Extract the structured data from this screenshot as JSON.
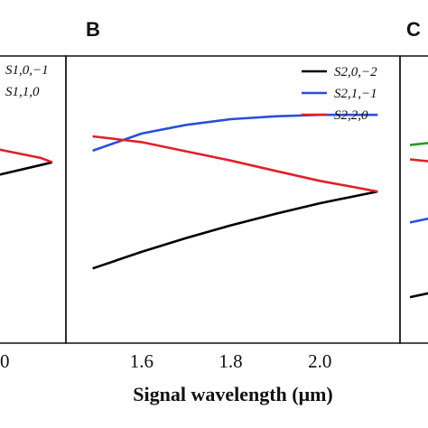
{
  "chart_data": [
    {
      "panel_label": "",
      "type": "line",
      "legend_entries": [
        "S1,0,−1",
        "S1,1,0"
      ],
      "series": [
        {
          "color": "#000000",
          "points": [
            [
              1.45,
              0.58
            ],
            [
              2.0,
              0.62
            ],
            [
              2.13,
              0.63
            ]
          ]
        },
        {
          "color": "#e0202a",
          "points": [
            [
              1.45,
              0.68
            ],
            [
              2.0,
              0.645
            ],
            [
              2.13,
              0.63
            ]
          ]
        }
      ],
      "x_tick_labels": [
        "0"
      ]
    },
    {
      "panel_label": "B",
      "type": "line",
      "xlabel": "Signal wavelength (μm)",
      "xlim": [
        1.43,
        2.18
      ],
      "ylim": [
        0.0,
        1.0
      ],
      "x_ticks": [
        1.6,
        1.8,
        2.0
      ],
      "x_tick_labels": [
        "1.6",
        "1.8",
        "2.0"
      ],
      "grid": false,
      "legend_position": "top-right",
      "series": [
        {
          "name": "S2,0,−2",
          "color": "#000000",
          "x": [
            1.49,
            1.6,
            1.7,
            1.8,
            1.9,
            2.0,
            2.13
          ],
          "y": [
            0.26,
            0.318,
            0.366,
            0.41,
            0.45,
            0.487,
            0.528
          ]
        },
        {
          "name": "S2,1,−1",
          "color": "#2b4fd6",
          "x": [
            1.49,
            1.6,
            1.7,
            1.8,
            1.9,
            2.0,
            2.13
          ],
          "y": [
            0.67,
            0.73,
            0.76,
            0.78,
            0.79,
            0.795,
            0.795
          ]
        },
        {
          "name": "S2,2,0",
          "color": "#e0202a",
          "x": [
            1.49,
            1.6,
            1.7,
            1.8,
            1.9,
            2.0,
            2.13
          ],
          "y": [
            0.72,
            0.7,
            0.668,
            0.636,
            0.6,
            0.565,
            0.528
          ]
        }
      ]
    },
    {
      "panel_label": "C",
      "type": "line",
      "series": [
        {
          "color": "#2a9a2a",
          "points": [
            [
              0.0,
              0.69
            ],
            [
              1.0,
              0.71
            ]
          ]
        },
        {
          "color": "#e0202a",
          "points": [
            [
              0.0,
              0.64
            ],
            [
              1.0,
              0.62
            ]
          ]
        },
        {
          "color": "#2b4fd6",
          "points": [
            [
              0.0,
              0.42
            ],
            [
              1.0,
              0.46
            ]
          ]
        },
        {
          "color": "#000000",
          "points": [
            [
              0.0,
              0.16
            ],
            [
              1.0,
              0.2
            ]
          ]
        }
      ]
    }
  ]
}
